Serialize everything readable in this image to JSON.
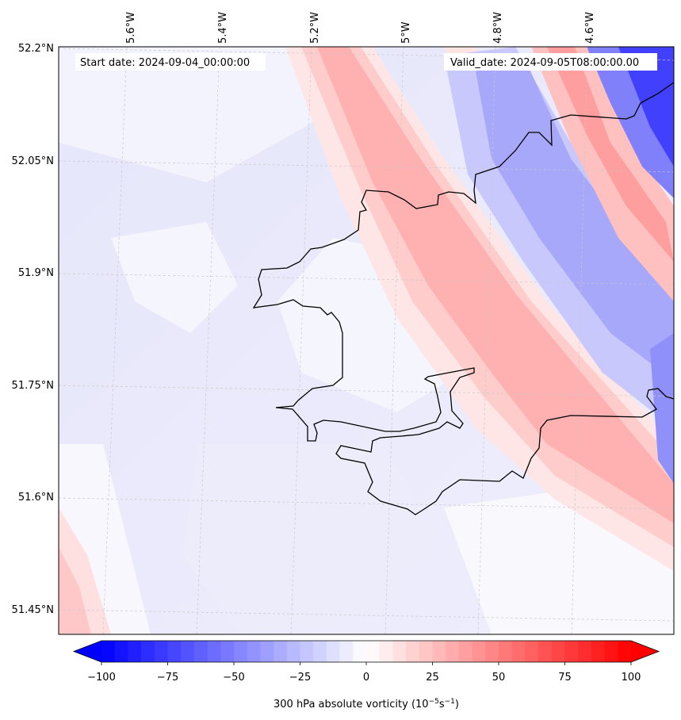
{
  "map": {
    "start_label": "Start date: 2024-09-04_00:00:00",
    "valid_label": "Valid_date: 2024-09-05T08:00:00.00",
    "lon_labels": [
      "5.6°W",
      "5.4°W",
      "5.2°W",
      "5°W",
      "4.8°W",
      "4.6°W"
    ],
    "lat_labels": [
      "52.2°N",
      "52.05°N",
      "51.9°N",
      "51.75°N",
      "51.6°N",
      "51.45°N"
    ],
    "coastline_color": "#000000",
    "gridline_color": "#c8c8c8"
  },
  "colorbar": {
    "ticks": [
      "−100",
      "−75",
      "−50",
      "−25",
      "0",
      "25",
      "50",
      "75",
      "100"
    ],
    "label_prefix": "300 hPa absolute vorticity (10",
    "label_exp1": "−5",
    "label_mid": "s",
    "label_exp2": "−1",
    "label_suffix": ")",
    "cmap": "bwr",
    "min_value": -100,
    "max_value": 100,
    "extend": "both",
    "colors": {
      "negative": "#0000ff",
      "neutral": "#ffffff",
      "positive": "#ff0000"
    }
  }
}
